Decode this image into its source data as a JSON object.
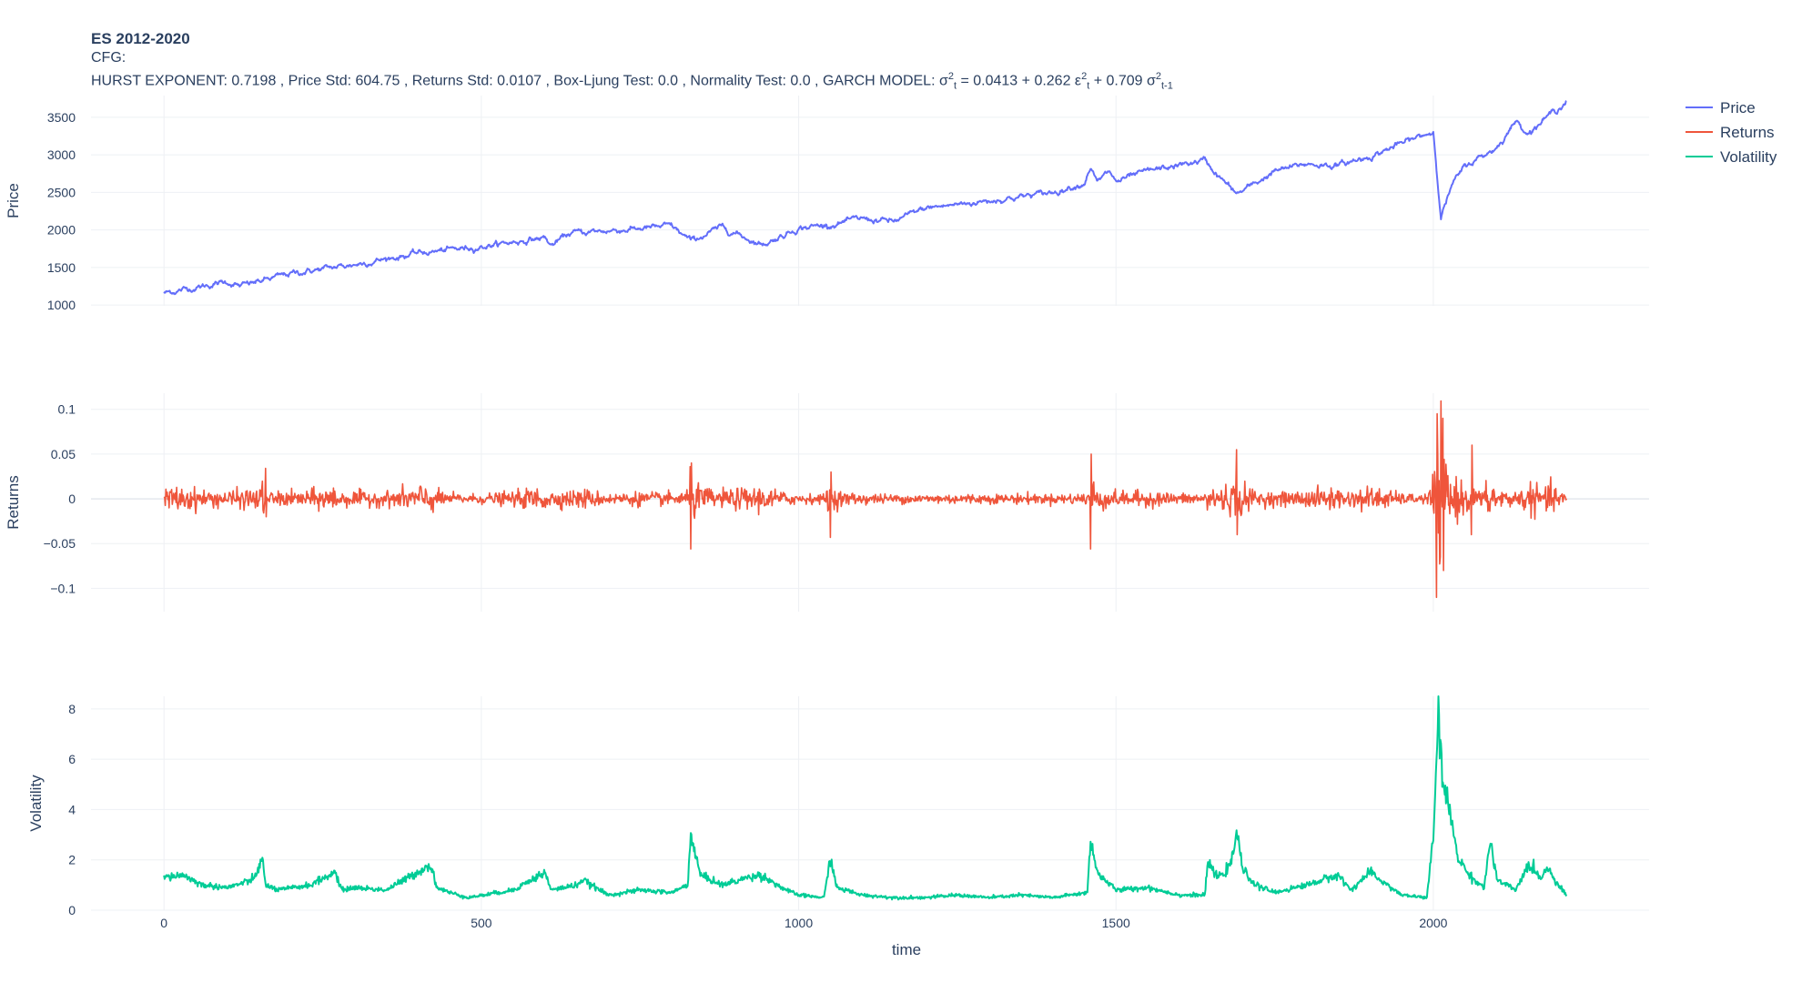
{
  "title": {
    "line1": "ES 2012-2020",
    "line2": "CFG:",
    "line3_prefix": "HURST EXPONENT: 0.7198 , Price Std: 604.75 , Returns Std: 0.0107 , Box-Ljung Test: 0.0 , Normality Test: 0.0 , GARCH MODEL: σ",
    "sup1": "2",
    "sub1": "t",
    "mid1": " = 0.0413 + 0.262 ε",
    "sup2": "2",
    "sub2": "t",
    "mid2": " + 0.709 σ",
    "sup3": "2",
    "sub3": "t-1"
  },
  "colors": {
    "price": "#636efa",
    "returns": "#ef553b",
    "volatility": "#00cc96",
    "grid": "#eef0f4",
    "zero": "#e4e7ee"
  },
  "chart_data": {
    "type": "line",
    "xlabel": "time",
    "x_ticks": [
      0,
      500,
      1000,
      1500,
      2000
    ],
    "xlim": [
      -115,
      2340
    ],
    "legend": [
      {
        "name": "Price",
        "color": "#636efa"
      },
      {
        "name": "Returns",
        "color": "#ef553b"
      },
      {
        "name": "Volatility",
        "color": "#00cc96"
      }
    ],
    "panels": [
      {
        "ylabel": "Price",
        "y_ticks": [
          1000,
          1500,
          2000,
          2500,
          3000,
          3500
        ],
        "y_tick_labels": [
          "1000",
          "1500",
          "2000",
          "2500",
          "3000",
          "3500"
        ],
        "ylim": [
          990,
          3790
        ],
        "series_name": "Price",
        "color": "#636efa",
        "noise": 12,
        "x": [
          0,
          100,
          120,
          200,
          300,
          400,
          500,
          560,
          600,
          610,
          640,
          700,
          800,
          830,
          880,
          940,
          950,
          1000,
          1050,
          1100,
          1150,
          1200,
          1300,
          1400,
          1450,
          1460,
          1470,
          1490,
          1500,
          1550,
          1600,
          1640,
          1660,
          1690,
          1700,
          1750,
          1800,
          1850,
          1900,
          1950,
          1990,
          2000,
          2012,
          2030,
          2050,
          2100,
          2130,
          2150,
          2200,
          2210
        ],
        "y": [
          1160,
          1310,
          1250,
          1420,
          1540,
          1690,
          1780,
          1850,
          1900,
          1790,
          1960,
          1990,
          2050,
          1850,
          2040,
          1810,
          1830,
          2030,
          2070,
          2150,
          2110,
          2290,
          2390,
          2500,
          2630,
          2850,
          2630,
          2780,
          2640,
          2780,
          2860,
          2930,
          2730,
          2480,
          2520,
          2780,
          2880,
          2860,
          2980,
          3150,
          3280,
          3310,
          2200,
          2600,
          2850,
          3100,
          3450,
          3300,
          3650,
          3720
        ]
      },
      {
        "ylabel": "Returns",
        "y_ticks": [
          -0.1,
          -0.05,
          0,
          0.05,
          0.1
        ],
        "y_tick_labels": [
          "−0.1",
          "−0.05",
          "0",
          "0.05",
          "0.1"
        ],
        "ylim": [
          -0.126,
          0.118
        ],
        "series_name": "Returns",
        "color": "#ef553b",
        "spikes": [
          [
            160,
            0.034,
            -0.02
          ],
          [
            830,
            -0.056,
            0.04
          ],
          [
            1050,
            -0.043,
            0.03
          ],
          [
            1460,
            -0.056,
            0.05
          ],
          [
            1690,
            0.055,
            -0.04
          ],
          [
            2005,
            -0.11,
            0.095
          ],
          [
            2015,
            0.09,
            -0.08
          ],
          [
            2060,
            -0.04,
            0.06
          ]
        ],
        "vol_scale": 0.0055
      },
      {
        "ylabel": "Volatility",
        "y_ticks": [
          0,
          2,
          4,
          6,
          8
        ],
        "y_tick_labels": [
          "0",
          "2",
          "4",
          "6",
          "8"
        ],
        "ylim": [
          0,
          8.5
        ],
        "series_name": "Volatility",
        "color": "#00cc96",
        "noise": 0.12,
        "x": [
          0,
          30,
          60,
          100,
          140,
          155,
          160,
          180,
          230,
          270,
          280,
          300,
          350,
          420,
          430,
          450,
          480,
          550,
          600,
          610,
          650,
          660,
          700,
          750,
          800,
          825,
          830,
          845,
          880,
          920,
          940,
          980,
          1000,
          1040,
          1050,
          1060,
          1100,
          1150,
          1200,
          1250,
          1300,
          1350,
          1400,
          1455,
          1460,
          1470,
          1500,
          1550,
          1600,
          1640,
          1645,
          1660,
          1680,
          1690,
          1700,
          1720,
          1750,
          1800,
          1850,
          1870,
          1900,
          1950,
          1990,
          2000,
          2008,
          2015,
          2025,
          2040,
          2060,
          2080,
          2090,
          2100,
          2130,
          2150,
          2170,
          2180,
          2200,
          2210
        ],
        "y": [
          1.3,
          1.4,
          1.0,
          0.9,
          1.2,
          2.0,
          1.0,
          0.8,
          1.0,
          1.5,
          0.8,
          0.9,
          0.8,
          1.8,
          0.9,
          0.7,
          0.5,
          0.8,
          1.5,
          0.8,
          1.0,
          1.2,
          0.6,
          0.8,
          0.7,
          1.0,
          3.0,
          1.4,
          1.0,
          1.3,
          1.4,
          0.8,
          0.6,
          0.5,
          2.1,
          0.9,
          0.6,
          0.5,
          0.5,
          0.6,
          0.5,
          0.6,
          0.5,
          0.7,
          2.9,
          1.5,
          0.8,
          0.9,
          0.6,
          0.6,
          1.9,
          1.3,
          1.7,
          3.1,
          1.6,
          1.0,
          0.7,
          1.0,
          1.4,
          0.8,
          1.5,
          0.6,
          0.5,
          2.9,
          7.8,
          5.0,
          4.0,
          2.0,
          1.3,
          0.9,
          2.8,
          1.2,
          0.8,
          1.8,
          1.3,
          1.7,
          0.9,
          0.6
        ]
      }
    ]
  }
}
